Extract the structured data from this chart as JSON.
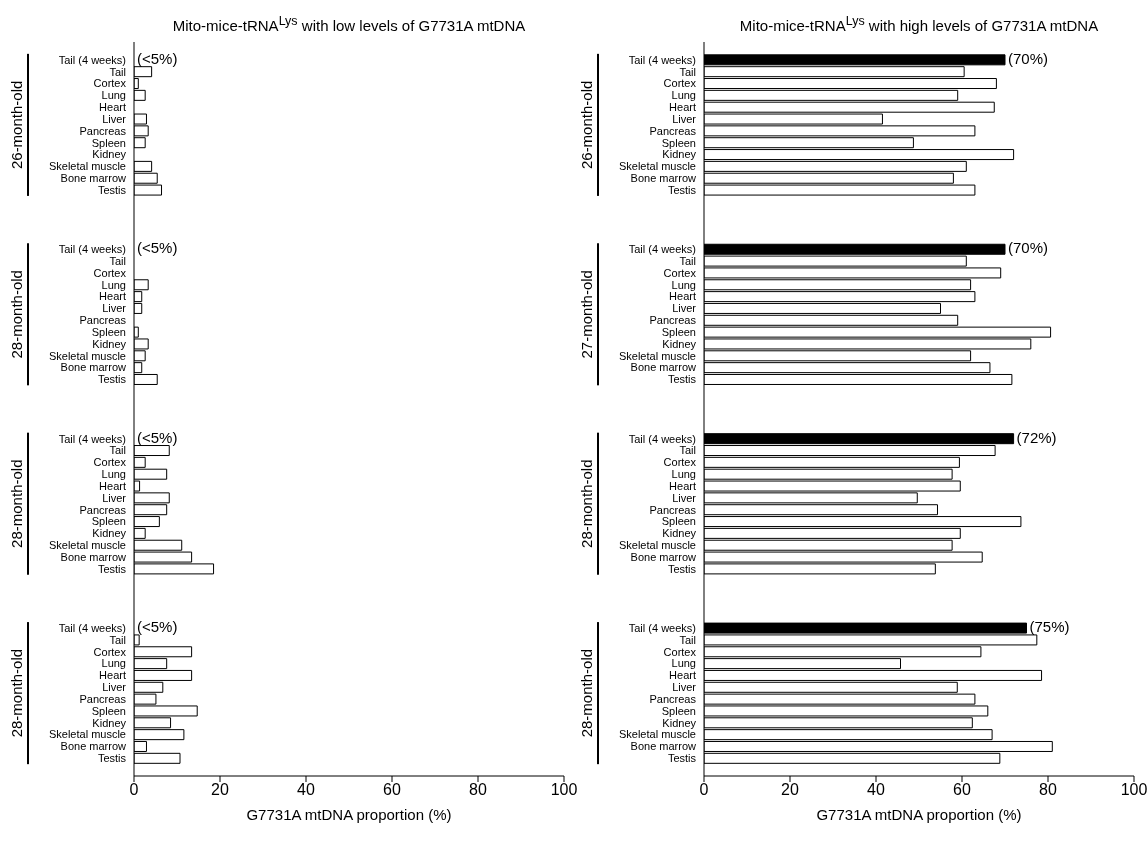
{
  "chart_data": [
    {
      "type": "bar",
      "orientation": "horizontal",
      "title": "Mito-mice-tRNA$^{Lys}$ with low levels of G7731A mtDNA",
      "xlabel": "G7731A mtDNA proportion (%)",
      "categories": [
        null,
        "Tail (4 weeks)",
        "Tail",
        "Cortex",
        "Lung",
        "Heart",
        "Liver",
        "Pancreas",
        "Spleen",
        "Kidney",
        "Skeletal muscle",
        "Bone marrow",
        "Testis",
        null,
        null,
        null,
        null,
        "Tail (4 weeks)",
        "Tail",
        "Cortex",
        "Lung",
        "Heart",
        "Liver",
        "Pancreas",
        "Spleen",
        "Kidney",
        "Skeletal muscle",
        "Bone marrow",
        "Testis",
        null,
        null,
        null,
        null,
        "Tail (4 weeks)",
        "Tail",
        "Cortex",
        "Lung",
        "Heart",
        "Liver",
        "Pancreas",
        "Spleen",
        "Kidney",
        "Skeletal muscle",
        "Bone marrow",
        "Testis",
        null,
        null,
        null,
        null,
        "Tail (4 weeks)",
        "Tail",
        "Cortex",
        "Lung",
        "Heart",
        "Liver",
        "Pancreas",
        "Spleen",
        "Kidney",
        "Skeletal muscle",
        "Bone marrow",
        "Testis",
        null
      ],
      "values": [
        null,
        null,
        4.1,
        1.0,
        2.6,
        0,
        2.9,
        3.3,
        2.6,
        0,
        4.1,
        5.4,
        6.4,
        null,
        null,
        null,
        null,
        null,
        0,
        0,
        3.3,
        1.8,
        1.8,
        0,
        1.0,
        3.3,
        2.6,
        1.8,
        5.4,
        null,
        null,
        null,
        null,
        null,
        8.2,
        2.6,
        7.6,
        1.3,
        8.2,
        7.6,
        5.9,
        2.6,
        11.1,
        13.4,
        18.5,
        null,
        null,
        null,
        null,
        null,
        1.2,
        13.4,
        7.6,
        13.4,
        6.7,
        5.1,
        14.7,
        8.5,
        11.6,
        2.9,
        10.7,
        null
      ],
      "colors": [
        "#ffffff",
        "#ffffff",
        "#ffffff",
        "#ffffff",
        "#ffffff",
        "#ffffff",
        "#ffffff",
        "#ffffff",
        "#ffffff",
        "#ffffff",
        "#ffffff",
        "#ffffff",
        "#ffffff",
        "#ffffff",
        "#ffffff",
        "#ffffff",
        "#ffffff",
        "#ffffff",
        "#ffffff",
        "#ffffff",
        "#ffffff",
        "#ffffff",
        "#ffffff",
        "#ffffff",
        "#ffffff",
        "#ffffff",
        "#ffffff",
        "#ffffff",
        "#ffffff",
        "#ffffff",
        "#ffffff",
        "#ffffff",
        "#ffffff",
        "#ffffff",
        "#ffffff",
        "#ffffff",
        "#ffffff",
        "#ffffff",
        "#ffffff",
        "#ffffff",
        "#ffffff",
        "#ffffff",
        "#ffffff",
        "#ffffff",
        "#ffffff",
        "#ffffff",
        "#ffffff",
        "#ffffff",
        "#ffffff",
        "#ffffff",
        "#ffffff",
        "#ffffff",
        "#ffffff",
        "#ffffff",
        "#ffffff",
        "#ffffff",
        "#ffffff",
        "#ffffff",
        "#ffffff",
        "#ffffff",
        "#ffffff",
        "#ffffff"
      ],
      "value_labels": [
        null,
        "(<5%)",
        null,
        null,
        null,
        null,
        null,
        null,
        null,
        null,
        null,
        null,
        null,
        null,
        null,
        null,
        null,
        "(<5%)",
        null,
        null,
        null,
        null,
        null,
        null,
        null,
        null,
        null,
        null,
        null,
        null,
        null,
        null,
        null,
        "(<5%)",
        null,
        null,
        null,
        null,
        null,
        null,
        null,
        null,
        null,
        null,
        null,
        null,
        null,
        null,
        null,
        "(<5%)",
        null,
        null,
        null,
        null,
        null,
        null,
        null,
        null,
        null,
        null,
        null,
        null
      ],
      "xlim": [
        0,
        100
      ],
      "xticks": [
        0,
        20,
        40,
        60,
        80,
        100
      ],
      "annotations": [
        "26-month-old",
        "28-month-old",
        "28-month-old",
        "28-month-old"
      ]
    },
    {
      "type": "bar",
      "orientation": "horizontal",
      "title": "Mito-mice-tRNA$^{Lys}$ with high levels of G7731A mtDNA",
      "xlabel": "G7731A mtDNA proportion (%)",
      "categories": [
        null,
        "Tail (4 weeks)",
        "Tail",
        "Cortex",
        "Lung",
        "Heart",
        "Liver",
        "Pancreas",
        "Spleen",
        "Kidney",
        "Skeletal muscle",
        "Bone marrow",
        "Testis",
        null,
        null,
        null,
        null,
        "Tail (4 weeks)",
        "Tail",
        "Cortex",
        "Lung",
        "Heart",
        "Liver",
        "Pancreas",
        "Spleen",
        "Kidney",
        "Skeletal muscle",
        "Bone marrow",
        "Testis",
        null,
        null,
        null,
        null,
        "Tail (4 weeks)",
        "Tail",
        "Cortex",
        "Lung",
        "Heart",
        "Liver",
        "Pancreas",
        "Spleen",
        "Kidney",
        "Skeletal muscle",
        "Bone marrow",
        "Testis",
        null,
        null,
        null,
        null,
        "Tail (4 weeks)",
        "Tail",
        "Cortex",
        "Lung",
        "Heart",
        "Liver",
        "Pancreas",
        "Spleen",
        "Kidney",
        "Skeletal muscle",
        "Bone marrow",
        "Testis",
        null
      ],
      "values": [
        null,
        70,
        60.5,
        68,
        59,
        67.5,
        41.5,
        63,
        48.7,
        72,
        61,
        58,
        63,
        null,
        null,
        null,
        null,
        70,
        61,
        69,
        62,
        63,
        55,
        59,
        80.6,
        76,
        62,
        66.5,
        71.6,
        null,
        null,
        null,
        null,
        72,
        67.7,
        59.4,
        57.7,
        59.6,
        49.6,
        54.3,
        73.7,
        59.6,
        57.7,
        64.7,
        53.8,
        null,
        null,
        null,
        null,
        75,
        77.4,
        64.4,
        45.7,
        78.5,
        58.9,
        63,
        66,
        62.4,
        67,
        81,
        68.8,
        null
      ],
      "colors": [
        "#ffffff",
        "#000000",
        "#ffffff",
        "#ffffff",
        "#ffffff",
        "#ffffff",
        "#ffffff",
        "#ffffff",
        "#ffffff",
        "#ffffff",
        "#ffffff",
        "#ffffff",
        "#ffffff",
        "#ffffff",
        "#ffffff",
        "#ffffff",
        "#ffffff",
        "#000000",
        "#ffffff",
        "#ffffff",
        "#ffffff",
        "#ffffff",
        "#ffffff",
        "#ffffff",
        "#ffffff",
        "#ffffff",
        "#ffffff",
        "#ffffff",
        "#ffffff",
        "#ffffff",
        "#ffffff",
        "#ffffff",
        "#ffffff",
        "#000000",
        "#ffffff",
        "#ffffff",
        "#ffffff",
        "#ffffff",
        "#ffffff",
        "#ffffff",
        "#ffffff",
        "#ffffff",
        "#ffffff",
        "#ffffff",
        "#ffffff",
        "#ffffff",
        "#ffffff",
        "#ffffff",
        "#ffffff",
        "#000000",
        "#ffffff",
        "#ffffff",
        "#ffffff",
        "#ffffff",
        "#ffffff",
        "#ffffff",
        "#ffffff",
        "#ffffff",
        "#ffffff",
        "#ffffff",
        "#ffffff",
        "#ffffff"
      ],
      "value_labels": [
        null,
        "(70%)",
        null,
        null,
        null,
        null,
        null,
        null,
        null,
        null,
        null,
        null,
        null,
        null,
        null,
        null,
        null,
        "(70%)",
        null,
        null,
        null,
        null,
        null,
        null,
        null,
        null,
        null,
        null,
        null,
        null,
        null,
        null,
        null,
        "(72%)",
        null,
        null,
        null,
        null,
        null,
        null,
        null,
        null,
        null,
        null,
        null,
        null,
        null,
        null,
        null,
        "(75%)",
        null,
        null,
        null,
        null,
        null,
        null,
        null,
        null,
        null,
        null,
        null,
        null
      ],
      "xlim": [
        0,
        100
      ],
      "xticks": [
        0,
        20,
        40,
        60,
        80,
        100
      ],
      "annotations": [
        "26-month-old",
        "27-month-old",
        "28-month-old",
        "28-month-old"
      ]
    }
  ]
}
